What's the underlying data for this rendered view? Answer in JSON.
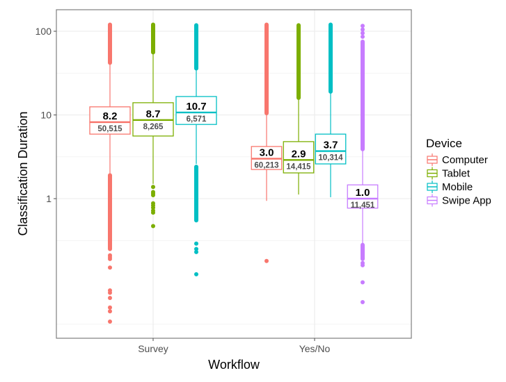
{
  "chart_data": {
    "type": "boxplot",
    "title": "",
    "xlabel": "Workflow",
    "ylabel": "Classification Duration",
    "y_scale": "log10",
    "ylim": [
      0.021,
      180
    ],
    "y_ticks": [
      1,
      10,
      100
    ],
    "y_tick_labels": [
      "1",
      "10",
      "100"
    ],
    "y_minor_gridlines": [
      0.0316,
      0.316,
      3.16,
      31.6
    ],
    "grid": true,
    "categories": [
      "Survey",
      "Yes/No"
    ],
    "legend": {
      "title": "Device",
      "position": "right",
      "entries": [
        "Computer",
        "Tablet",
        "Mobile",
        "Swipe App"
      ]
    },
    "series": [
      {
        "name": "Computer",
        "color": "#F8766D",
        "boxes": [
          {
            "category": "Survey",
            "median": 8.2,
            "median_label": "8.2",
            "n_label": "50,515",
            "q1": 5.9,
            "q3": 12.5,
            "whisker_low": 1.9,
            "whisker_high": 42,
            "outlier_bands": [
              [
                42,
                120
              ],
              [
                0.25,
                1.9
              ]
            ],
            "outliers": [
              0.21,
              0.2,
              0.19,
              0.15,
              0.08,
              0.075,
              0.065,
              0.05,
              0.045,
              0.034
            ]
          },
          {
            "category": "Yes/No",
            "median": 3.0,
            "median_label": "3.0",
            "n_label": "60,213",
            "q1": 2.23,
            "q3": 4.2,
            "whisker_low": 0.94,
            "whisker_high": 10.5,
            "outlier_bands": [
              [
                10.5,
                120
              ]
            ],
            "outliers": [
              0.18
            ]
          }
        ]
      },
      {
        "name": "Tablet",
        "color": "#7CAE00",
        "boxes": [
          {
            "category": "Survey",
            "median": 8.7,
            "median_label": "8.7",
            "n_label": "8,265",
            "q1": 5.6,
            "q3": 14.0,
            "whisker_low": 1.5,
            "whisker_high": 56,
            "outlier_bands": [
              [
                56,
                120
              ]
            ],
            "outliers": [
              1.38,
              1.2,
              1.15,
              1.1,
              0.88,
              0.83,
              0.78,
              0.72,
              0.68,
              0.47
            ]
          },
          {
            "category": "Yes/No",
            "median": 2.9,
            "median_label": "2.9",
            "n_label": "14,415",
            "q1": 2.03,
            "q3": 4.8,
            "whisker_low": 1.12,
            "whisker_high": 16,
            "outlier_bands": [
              [
                16,
                118
              ]
            ],
            "outliers": []
          }
        ]
      },
      {
        "name": "Mobile",
        "color": "#00BFC4",
        "boxes": [
          {
            "category": "Survey",
            "median": 10.7,
            "median_label": "10.7",
            "n_label": "6,571",
            "q1": 7.7,
            "q3": 16.6,
            "whisker_low": 2.6,
            "whisker_high": 36,
            "outlier_bands": [
              [
                36,
                118
              ],
              [
                0.55,
                2.4
              ]
            ],
            "outliers": [
              0.29,
              0.25,
              0.23,
              0.125
            ]
          },
          {
            "category": "Yes/No",
            "median": 3.7,
            "median_label": "3.7",
            "n_label": "10,314",
            "q1": 2.6,
            "q3": 5.9,
            "whisker_low": 1.04,
            "whisker_high": 19,
            "outlier_bands": [
              [
                19,
                120
              ]
            ],
            "outliers": []
          }
        ]
      },
      {
        "name": "Swipe App",
        "color": "#C77CFF",
        "boxes": [
          {
            "category": "Yes/No",
            "median": 1.0,
            "median_label": "1.0",
            "n_label": "11,451",
            "q1": 0.77,
            "q3": 1.46,
            "whisker_low": 0.28,
            "whisker_high": 3.9,
            "outlier_bands": [
              [
                3.9,
                75
              ],
              [
                0.19,
                0.28
              ]
            ],
            "outliers": [
              116,
              105,
              95,
              86,
              0.17,
              0.16,
              0.1,
              0.058
            ]
          }
        ]
      }
    ]
  }
}
